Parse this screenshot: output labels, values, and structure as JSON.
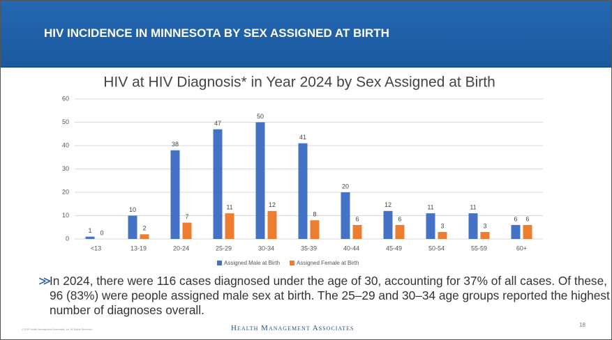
{
  "header_title": "HIV INCIDENCE IN MINNESOTA BY SEX ASSIGNED AT BIRTH",
  "bullet": "In 2024, there were 116 cases diagnosed under the age of 30, accounting for 37% of all cases. Of these, 96 (83%) were people assigned male sex at birth. The 25–29 and 30–34 age groups reported the highest number of diagnoses overall.",
  "footer": "© 2025 Health Management Associates, Inc. All Rights Reserved.",
  "logo": "Health Management Associates",
  "page_number": "18",
  "chart_data": {
    "type": "bar",
    "title": "HIV at HIV Diagnosis* in Year 2024 by Sex Assigned at Birth",
    "categories": [
      "<13",
      "13-19",
      "20-24",
      "25-29",
      "30-34",
      "35-39",
      "40-44",
      "45-49",
      "50-54",
      "55-59",
      "60+"
    ],
    "series": [
      {
        "name": "Assigned Male at Birth",
        "color": "#4472c4",
        "values": [
          1,
          10,
          38,
          47,
          50,
          41,
          20,
          12,
          11,
          11,
          6
        ]
      },
      {
        "name": "Assigned Female at Birth",
        "color": "#ed7d31",
        "values": [
          0,
          2,
          7,
          11,
          12,
          8,
          6,
          6,
          3,
          3,
          6
        ]
      }
    ],
    "ylim": [
      0,
      60
    ],
    "yticks": [
      0,
      10,
      20,
      30,
      40,
      50,
      60
    ],
    "grid": true,
    "legend": "bottom"
  }
}
